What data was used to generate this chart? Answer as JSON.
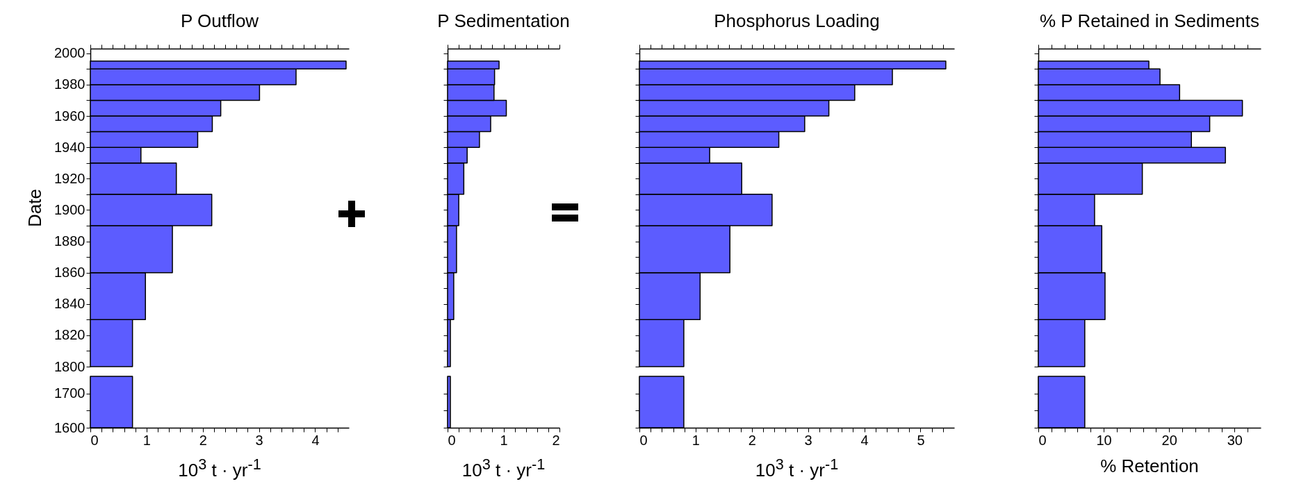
{
  "chart_data": [
    {
      "type": "histogram",
      "orientation": "horizontal",
      "title": "P Outflow",
      "ylabel": "Date",
      "color": "#5c5cff",
      "bins": [
        1800,
        1830,
        1860,
        1890,
        1910,
        1930,
        1940,
        1950,
        1960,
        1970,
        1980,
        1990,
        1995
      ],
      "values": [
        0.75,
        0.98,
        1.46,
        2.16,
        1.53,
        0.9,
        1.91,
        2.17,
        2.32,
        3.01,
        3.66,
        4.55
      ],
      "xlim": [
        0,
        4.6
      ],
      "xticks": [
        0,
        {
          "value": 0.2,
          "label": null
        },
        {
          "value": 0.4,
          "label": null
        },
        {
          "value": 0.6,
          "label": null
        },
        {
          "value": 0.8,
          "label": null
        },
        1,
        {
          "value": 1.2,
          "label": null
        },
        {
          "value": 1.4,
          "label": null
        },
        {
          "value": 1.6,
          "label": null
        },
        {
          "value": 1.8,
          "label": null
        },
        2,
        {
          "value": 2.2,
          "label": null
        },
        {
          "value": 2.4,
          "label": null
        },
        {
          "value": 2.6,
          "label": null
        },
        {
          "value": 2.8,
          "label": null
        },
        3,
        {
          "value": 3.2,
          "label": null
        },
        {
          "value": 3.4,
          "label": null
        },
        {
          "value": 3.6,
          "label": null
        },
        {
          "value": 3.8,
          "label": null
        },
        4,
        {
          "value": 4.2,
          "label": null
        },
        {
          "value": 4.4,
          "label": null
        }
      ],
      "ylim": [
        1800,
        2003
      ],
      "yticks": [
        1800,
        {
          "value": 1810,
          "label": null
        },
        1820,
        {
          "value": 1830,
          "label": null
        },
        1840,
        {
          "value": 1850,
          "label": null
        },
        1860,
        {
          "value": 1870,
          "label": null
        },
        1880,
        {
          "value": 1890,
          "label": null
        },
        1900,
        {
          "value": 1910,
          "label": null
        },
        1920,
        {
          "value": 1930,
          "label": null
        },
        1940,
        {
          "value": 1950,
          "label": null
        },
        1960,
        {
          "value": 1970,
          "label": null
        },
        1980,
        {
          "value": 1990,
          "label": null
        },
        2000
      ],
      "tick_labels": "y"
    },
    {
      "type": "histogram",
      "orientation": "horizontal",
      "xlabel": "10$^{3}$ t · yr$^{-1}$",
      "color": "#5c5cff",
      "bins": [
        1600,
        1750
      ],
      "values": [
        0.75
      ],
      "xlim": [
        0,
        4.6
      ],
      "xticks": [
        0,
        {
          "value": 0.2,
          "label": null
        },
        {
          "value": 0.4,
          "label": null
        },
        {
          "value": 0.6,
          "label": null
        },
        {
          "value": 0.8,
          "label": null
        },
        1,
        {
          "value": 1.2,
          "label": null
        },
        {
          "value": 1.4,
          "label": null
        },
        {
          "value": 1.6,
          "label": null
        },
        {
          "value": 1.8,
          "label": null
        },
        2,
        {
          "value": 2.2,
          "label": null
        },
        {
          "value": 2.4,
          "label": null
        },
        {
          "value": 2.6,
          "label": null
        },
        {
          "value": 2.8,
          "label": null
        },
        3,
        {
          "value": 3.2,
          "label": null
        },
        {
          "value": 3.4,
          "label": null
        },
        {
          "value": 3.6,
          "label": null
        },
        {
          "value": 3.8,
          "label": null
        },
        4,
        {
          "value": 4.2,
          "label": null
        },
        {
          "value": 4.4,
          "label": null
        }
      ],
      "ylim": [
        1600,
        1750
      ],
      "yticks": [
        1600,
        {
          "value": 1650,
          "label": null
        },
        1700
      ]
    },
    {
      "type": "histogram",
      "orientation": "horizontal",
      "title": "P Sedimentation",
      "color": "#5c5cff",
      "bins": [
        1800,
        1830,
        1860,
        1890,
        1910,
        1930,
        1940,
        1950,
        1960,
        1970,
        1980,
        1990,
        1995
      ],
      "values": [
        0.05,
        0.11,
        0.16,
        0.2,
        0.29,
        0.35,
        0.57,
        0.77,
        1.05,
        0.83,
        0.84,
        0.92
      ],
      "xlim": [
        0,
        2
      ],
      "xticks": [
        0,
        {
          "value": 0.2,
          "label": null
        },
        {
          "value": 0.4,
          "label": null
        },
        {
          "value": 0.6,
          "label": null
        },
        {
          "value": 0.8,
          "label": null
        },
        1,
        {
          "value": 1.2,
          "label": null
        },
        {
          "value": 1.4,
          "label": null
        },
        {
          "value": 1.6,
          "label": null
        },
        {
          "value": 1.8,
          "label": null
        },
        2
      ],
      "ylim": [
        1800,
        2003
      ],
      "yticks": [
        1800,
        {
          "value": 1810,
          "label": null
        },
        {
          "value": 1820,
          "label": null
        },
        {
          "value": 1830,
          "label": null
        },
        {
          "value": 1840,
          "label": null
        },
        {
          "value": 1850,
          "label": null
        },
        {
          "value": 1860,
          "label": null
        },
        {
          "value": 1870,
          "label": null
        },
        {
          "value": 1880,
          "label": null
        },
        {
          "value": 1890,
          "label": null
        },
        {
          "value": 1900,
          "label": null
        },
        {
          "value": 1910,
          "label": null
        },
        {
          "value": 1920,
          "label": null
        },
        {
          "value": 1930,
          "label": null
        },
        {
          "value": 1940,
          "label": null
        },
        {
          "value": 1950,
          "label": null
        },
        {
          "value": 1960,
          "label": null
        },
        {
          "value": 1970,
          "label": null
        },
        {
          "value": 1980,
          "label": null
        },
        {
          "value": 1990,
          "label": null
        },
        {
          "value": 2000,
          "label": null
        }
      ],
      "tick_labels": false
    },
    {
      "type": "histogram",
      "orientation": "horizontal",
      "xlabel": "10$^{3}$ t · yr$^{-1}$",
      "color": "#5c5cff",
      "bins": [
        1600,
        1750
      ],
      "values": [
        0.05
      ],
      "xlim": [
        0,
        2
      ],
      "xticks": [
        0,
        {
          "value": 0.2,
          "label": null
        },
        {
          "value": 0.4,
          "label": null
        },
        {
          "value": 0.6,
          "label": null
        },
        {
          "value": 0.8,
          "label": null
        },
        1,
        {
          "value": 1.2,
          "label": null
        },
        {
          "value": 1.4,
          "label": null
        },
        {
          "value": 1.6,
          "label": null
        },
        {
          "value": 1.8,
          "label": null
        },
        2
      ],
      "ylim": [
        1600,
        1750
      ],
      "yticks": [
        {
          "value": 1600,
          "label": null
        },
        {
          "value": 1650,
          "label": null
        },
        {
          "value": 1700,
          "label": null
        }
      ],
      "tick_labels": "x"
    },
    {
      "type": "histogram",
      "orientation": "horizontal",
      "title": "Phosphorus Loading",
      "color": "#5c5cff",
      "bins": [
        1800,
        1830,
        1860,
        1890,
        1910,
        1930,
        1940,
        1950,
        1960,
        1970,
        1980,
        1990,
        1995
      ],
      "values": [
        0.79,
        1.08,
        1.61,
        2.36,
        1.82,
        1.25,
        2.48,
        2.94,
        3.37,
        3.83,
        4.5,
        5.45
      ],
      "xlim": [
        0,
        5.6
      ],
      "xticks": [
        0,
        {
          "value": 0.2,
          "label": null
        },
        {
          "value": 0.4,
          "label": null
        },
        {
          "value": 0.6,
          "label": null
        },
        {
          "value": 0.8,
          "label": null
        },
        1,
        {
          "value": 1.2,
          "label": null
        },
        {
          "value": 1.4,
          "label": null
        },
        {
          "value": 1.6,
          "label": null
        },
        {
          "value": 1.8,
          "label": null
        },
        2,
        {
          "value": 2.2,
          "label": null
        },
        {
          "value": 2.4,
          "label": null
        },
        {
          "value": 2.6,
          "label": null
        },
        {
          "value": 2.8,
          "label": null
        },
        3,
        {
          "value": 3.2,
          "label": null
        },
        {
          "value": 3.4,
          "label": null
        },
        {
          "value": 3.6,
          "label": null
        },
        {
          "value": 3.8,
          "label": null
        },
        4,
        {
          "value": 4.2,
          "label": null
        },
        {
          "value": 4.4,
          "label": null
        },
        {
          "value": 4.6,
          "label": null
        },
        {
          "value": 4.8,
          "label": null
        },
        5,
        {
          "value": 5.2,
          "label": null
        },
        {
          "value": 5.4,
          "label": null
        }
      ],
      "ylim": [
        1800,
        2003
      ],
      "yticks": [
        1800,
        {
          "value": 1810,
          "label": null
        },
        {
          "value": 1820,
          "label": null
        },
        {
          "value": 1830,
          "label": null
        },
        {
          "value": 1840,
          "label": null
        },
        {
          "value": 1850,
          "label": null
        },
        {
          "value": 1860,
          "label": null
        },
        {
          "value": 1870,
          "label": null
        },
        {
          "value": 1880,
          "label": null
        },
        {
          "value": 1890,
          "label": null
        },
        {
          "value": 1900,
          "label": null
        },
        {
          "value": 1910,
          "label": null
        },
        {
          "value": 1920,
          "label": null
        },
        {
          "value": 1930,
          "label": null
        },
        {
          "value": 1940,
          "label": null
        },
        {
          "value": 1950,
          "label": null
        },
        {
          "value": 1960,
          "label": null
        },
        {
          "value": 1970,
          "label": null
        },
        {
          "value": 1980,
          "label": null
        },
        {
          "value": 1990,
          "label": null
        },
        {
          "value": 2000,
          "label": null
        }
      ],
      "tick_labels": false
    },
    {
      "type": "histogram",
      "orientation": "horizontal",
      "xlabel": "10$^{3}$ t · yr$^{-1}$",
      "color": "#5c5cff",
      "bins": [
        1600,
        1750
      ],
      "values": [
        0.79
      ],
      "xlim": [
        0,
        5.6
      ],
      "xticks": [
        0,
        {
          "value": 0.2,
          "label": null
        },
        {
          "value": 0.4,
          "label": null
        },
        {
          "value": 0.6,
          "label": null
        },
        {
          "value": 0.8,
          "label": null
        },
        1,
        {
          "value": 1.2,
          "label": null
        },
        {
          "value": 1.4,
          "label": null
        },
        {
          "value": 1.6,
          "label": null
        },
        {
          "value": 1.8,
          "label": null
        },
        2,
        {
          "value": 2.2,
          "label": null
        },
        {
          "value": 2.4,
          "label": null
        },
        {
          "value": 2.6,
          "label": null
        },
        {
          "value": 2.8,
          "label": null
        },
        3,
        {
          "value": 3.2,
          "label": null
        },
        {
          "value": 3.4,
          "label": null
        },
        {
          "value": 3.6,
          "label": null
        },
        {
          "value": 3.8,
          "label": null
        },
        4,
        {
          "value": 4.2,
          "label": null
        },
        {
          "value": 4.4,
          "label": null
        },
        {
          "value": 4.6,
          "label": null
        },
        {
          "value": 4.8,
          "label": null
        },
        5,
        {
          "value": 5.2,
          "label": null
        },
        {
          "value": 5.4,
          "label": null
        }
      ],
      "ylim": [
        1600,
        1750
      ],
      "yticks": [
        {
          "value": 1600,
          "label": null
        },
        {
          "value": 1650,
          "label": null
        },
        {
          "value": 1700,
          "label": null
        }
      ],
      "tick_labels": "x"
    },
    {
      "type": "histogram",
      "orientation": "horizontal",
      "title": "% P Retained in Sediments",
      "color": "#5c5cff",
      "bins": [
        1800,
        1830,
        1860,
        1890,
        1910,
        1930,
        1940,
        1950,
        1960,
        1970,
        1980,
        1990,
        1995
      ],
      "values": [
        7.1,
        10.2,
        9.7,
        8.6,
        15.9,
        28.6,
        23.4,
        26.2,
        31.2,
        21.6,
        18.6,
        16.9
      ],
      "xlim": [
        0,
        34
      ],
      "xticks": [
        0,
        {
          "value": 2,
          "label": null
        },
        {
          "value": 4,
          "label": null
        },
        {
          "value": 6,
          "label": null
        },
        {
          "value": 8,
          "label": null
        },
        10,
        {
          "value": 12,
          "label": null
        },
        {
          "value": 14,
          "label": null
        },
        {
          "value": 16,
          "label": null
        },
        {
          "value": 18,
          "label": null
        },
        20,
        {
          "value": 22,
          "label": null
        },
        {
          "value": 24,
          "label": null
        },
        {
          "value": 26,
          "label": null
        },
        {
          "value": 28,
          "label": null
        },
        30,
        {
          "value": 32,
          "label": null
        }
      ],
      "ylim": [
        1800,
        2003
      ],
      "yticks": [
        1800,
        {
          "value": 1810,
          "label": null
        },
        {
          "value": 1820,
          "label": null
        },
        {
          "value": 1830,
          "label": null
        },
        {
          "value": 1840,
          "label": null
        },
        {
          "value": 1850,
          "label": null
        },
        {
          "value": 1860,
          "label": null
        },
        {
          "value": 1870,
          "label": null
        },
        {
          "value": 1880,
          "label": null
        },
        {
          "value": 1890,
          "label": null
        },
        {
          "value": 1900,
          "label": null
        },
        {
          "value": 1910,
          "label": null
        },
        {
          "value": 1920,
          "label": null
        },
        {
          "value": 1930,
          "label": null
        },
        {
          "value": 1940,
          "label": null
        },
        {
          "value": 1950,
          "label": null
        },
        {
          "value": 1960,
          "label": null
        },
        {
          "value": 1970,
          "label": null
        },
        {
          "value": 1980,
          "label": null
        },
        {
          "value": 1990,
          "label": null
        },
        {
          "value": 2000,
          "label": null
        }
      ],
      "tick_labels": false
    },
    {
      "type": "histogram",
      "orientation": "horizontal",
      "xlabel": "% Retention",
      "color": "#5c5cff",
      "bins": [
        1600,
        1750
      ],
      "values": [
        7.1
      ],
      "xlim": [
        0,
        34
      ],
      "xticks": [
        0,
        {
          "value": 2,
          "label": null
        },
        {
          "value": 4,
          "label": null
        },
        {
          "value": 6,
          "label": null
        },
        {
          "value": 8,
          "label": null
        },
        10,
        {
          "value": 12,
          "label": null
        },
        {
          "value": 14,
          "label": null
        },
        {
          "value": 16,
          "label": null
        },
        {
          "value": 18,
          "label": null
        },
        20,
        {
          "value": 22,
          "label": null
        },
        {
          "value": 24,
          "label": null
        },
        {
          "value": 26,
          "label": null
        },
        {
          "value": 28,
          "label": null
        },
        30,
        {
          "value": 32,
          "label": null
        }
      ],
      "ylim": [
        1600,
        1750
      ],
      "yticks": [
        {
          "value": 1600,
          "label": null
        },
        {
          "value": 1650,
          "label": null
        },
        {
          "value": 1700,
          "label": null
        }
      ],
      "tick_labels": "x"
    }
  ]
}
